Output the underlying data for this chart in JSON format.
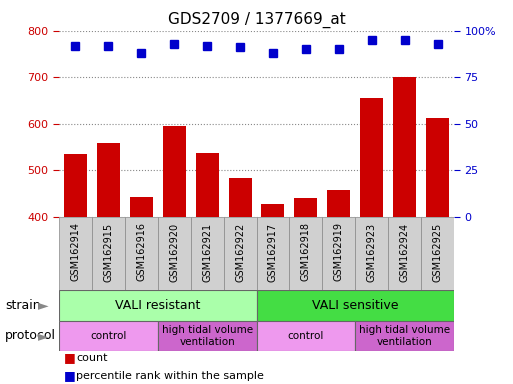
{
  "title": "GDS2709 / 1377669_at",
  "samples": [
    "GSM162914",
    "GSM162915",
    "GSM162916",
    "GSM162920",
    "GSM162921",
    "GSM162922",
    "GSM162917",
    "GSM162918",
    "GSM162919",
    "GSM162923",
    "GSM162924",
    "GSM162925"
  ],
  "counts": [
    535,
    558,
    442,
    595,
    538,
    483,
    427,
    440,
    458,
    655,
    700,
    612
  ],
  "percentile_ranks": [
    92,
    92,
    88,
    93,
    92,
    91,
    88,
    90,
    90,
    95,
    95,
    93
  ],
  "ylim_left": [
    400,
    800
  ],
  "ylim_right": [
    0,
    100
  ],
  "yticks_left": [
    400,
    500,
    600,
    700,
    800
  ],
  "yticks_right": [
    0,
    25,
    50,
    75,
    100
  ],
  "bar_color": "#cc0000",
  "dot_color": "#0000cc",
  "strain_groups": [
    {
      "label": "VALI resistant",
      "start": 0,
      "end": 6,
      "color": "#aaffaa"
    },
    {
      "label": "VALI sensitive",
      "start": 6,
      "end": 12,
      "color": "#44dd44"
    }
  ],
  "protocol_groups": [
    {
      "label": "control",
      "start": 0,
      "end": 3,
      "color": "#ee99ee"
    },
    {
      "label": "high tidal volume\nventilation",
      "start": 3,
      "end": 6,
      "color": "#cc66cc"
    },
    {
      "label": "control",
      "start": 6,
      "end": 9,
      "color": "#ee99ee"
    },
    {
      "label": "high tidal volume\nventilation",
      "start": 9,
      "end": 12,
      "color": "#cc66cc"
    }
  ],
  "legend_count_label": "count",
  "legend_pct_label": "percentile rank within the sample",
  "strain_label": "strain",
  "protocol_label": "protocol",
  "title_fontsize": 11,
  "tick_fontsize": 8,
  "bar_width": 0.7
}
